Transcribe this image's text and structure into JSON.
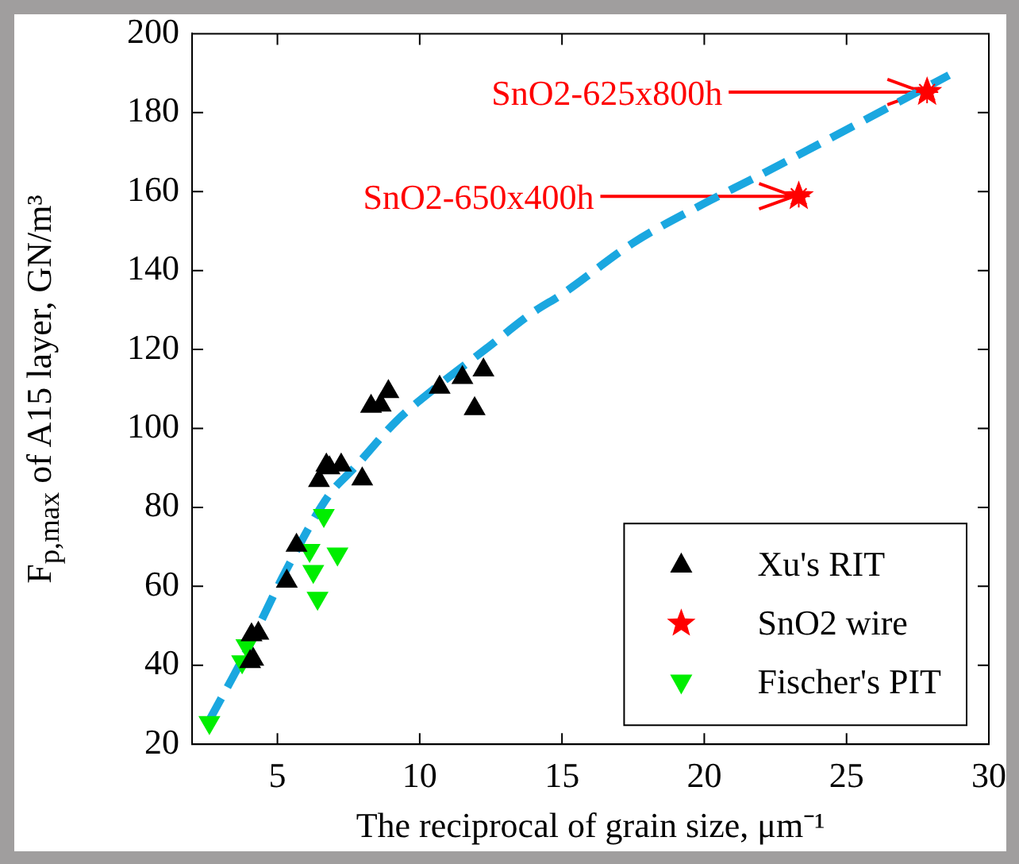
{
  "chart_data": {
    "type": "scatter",
    "xlabel": "The reciprocal of grain size, μm⁻¹",
    "ylabel": "F$_{p,max}$ of A15 layer, GN/m³",
    "xlim": [
      2,
      30
    ],
    "xticks": [
      5,
      10,
      15,
      20,
      25,
      30
    ],
    "ylim": [
      20,
      200
    ],
    "yticks": [
      20,
      40,
      60,
      80,
      100,
      120,
      140,
      160,
      180,
      200
    ],
    "grid": false,
    "legend": "bottom right",
    "series": [
      {
        "name": "Xu's RIT",
        "color": "#000000",
        "marker": "triangle",
        "x": [
          4.09,
          4.33,
          4.04,
          4.15,
          5.33,
          5.67,
          6.46,
          6.72,
          6.83,
          7.24,
          7.98,
          8.29,
          8.63,
          8.9,
          10.7,
          11.5,
          12.24,
          11.93
        ],
        "values": [
          47.7,
          48.1,
          40.9,
          41.5,
          61.3,
          70.4,
          86.8,
          90.7,
          90,
          90.7,
          87.2,
          105.6,
          105.9,
          109.3,
          110.4,
          112.9,
          114.8,
          105
        ]
      },
      {
        "name": "SnO2 wire",
        "color": "#ff0000",
        "marker": "star",
        "x": [
          27.83,
          23.32
        ],
        "values": [
          185.2,
          158.8
        ]
      },
      {
        "name": "Fischer's PIT",
        "color": "#00ee00",
        "marker": "triangle-down",
        "x": [
          2.61,
          3.91,
          3.76,
          6.13,
          7.11,
          6.26,
          6.41,
          6.63
        ],
        "values": [
          25.5,
          45,
          40.9,
          69.1,
          68.2,
          63.8,
          57,
          78
        ]
      },
      {
        "type": "line",
        "color": "#1aa7e0",
        "marker": "none",
        "line_style": "dashed",
        "x": [
          2.6,
          3.8,
          5.3,
          6.8,
          7.7,
          9.2,
          10.5,
          12.3,
          14,
          15,
          17.5,
          20,
          21.8,
          25.5,
          28.6
        ],
        "values": [
          26,
          42,
          64,
          83,
          90,
          102,
          110,
          120,
          129.5,
          134,
          147,
          157,
          163.6,
          177.6,
          189.5
        ]
      }
    ],
    "annotations": [
      {
        "text": "SnO2-625x800h",
        "x": 27.83,
        "y": 185.2
      },
      {
        "text": "SnO2-650x400h",
        "x": 23.32,
        "y": 158.8
      }
    ]
  }
}
